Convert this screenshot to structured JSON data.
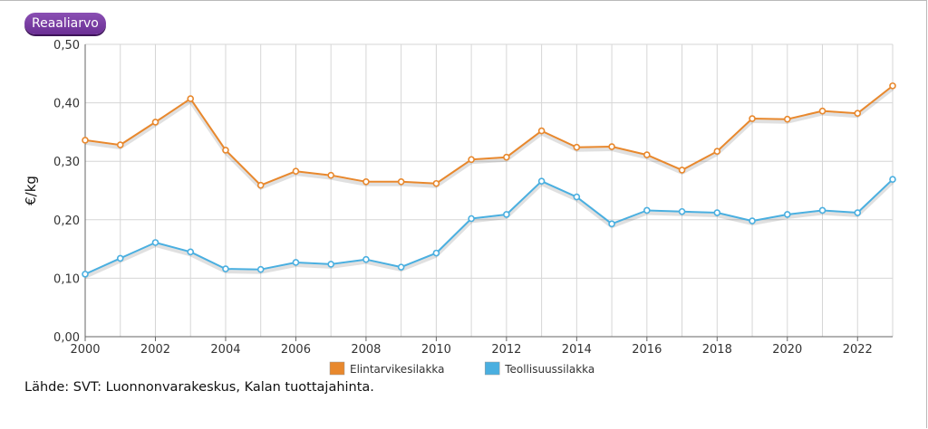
{
  "toggle": {
    "label": "Reaaliarvo"
  },
  "source_text": "Lähde: SVT: Luonnonvarakeskus, Kalan tuottajahinta.",
  "chart_data": {
    "type": "line",
    "ylabel": "€/kg",
    "xlabel": "",
    "ylim": [
      0,
      0.5
    ],
    "yticks": [
      "0,00",
      "0,10",
      "0,20",
      "0,30",
      "0,40",
      "0,50"
    ],
    "xticks": [
      "2000",
      "2002",
      "2004",
      "2006",
      "2008",
      "2010",
      "2012",
      "2014",
      "2016",
      "2018",
      "2020",
      "2022"
    ],
    "x": [
      2000,
      2001,
      2002,
      2003,
      2004,
      2005,
      2006,
      2007,
      2008,
      2009,
      2010,
      2011,
      2012,
      2013,
      2014,
      2015,
      2016,
      2017,
      2018,
      2019,
      2020,
      2021,
      2022,
      2023
    ],
    "grid": true,
    "legend_position": "bottom",
    "series": [
      {
        "name": "Elintarvikesilakka",
        "color": "#e8882d",
        "values": [
          0.336,
          0.328,
          0.367,
          0.407,
          0.319,
          0.259,
          0.283,
          0.276,
          0.265,
          0.265,
          0.262,
          0.303,
          0.307,
          0.352,
          0.324,
          0.325,
          0.311,
          0.285,
          0.317,
          0.373,
          0.372,
          0.386,
          0.382,
          0.429
        ]
      },
      {
        "name": "Teollisuussilakka",
        "color": "#4aafe0",
        "values": [
          0.107,
          0.134,
          0.161,
          0.145,
          0.116,
          0.115,
          0.127,
          0.124,
          0.132,
          0.119,
          0.143,
          0.202,
          0.209,
          0.266,
          0.239,
          0.193,
          0.216,
          0.214,
          0.212,
          0.198,
          0.209,
          0.216,
          0.212,
          0.269
        ]
      }
    ]
  }
}
